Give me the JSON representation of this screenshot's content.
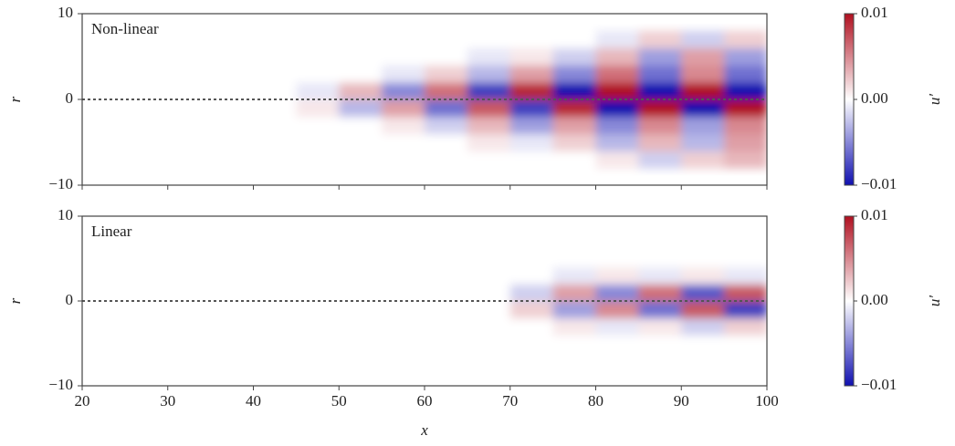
{
  "chart_data": [
    {
      "type": "heatmap",
      "annotation": "Non-linear",
      "ylabel": "r",
      "xlim": [
        20,
        100
      ],
      "xticks": [
        20,
        30,
        40,
        50,
        60,
        70,
        80,
        90,
        100
      ],
      "ylim": [
        -10,
        10
      ],
      "yticks": [
        {
          "value": -10,
          "label": "−10"
        },
        0,
        10
      ],
      "x": [
        22.5,
        27.5,
        32.5,
        37.5,
        42.5,
        47.5,
        52.5,
        57.5,
        62.5,
        67.5,
        72.5,
        77.5,
        82.5,
        87.5,
        92.5,
        97.5
      ],
      "y": [
        -7,
        -5,
        -3,
        -1,
        1,
        3,
        5,
        7
      ],
      "z": [
        [
          0,
          0,
          0,
          0,
          0,
          0,
          0,
          0,
          0,
          0,
          0,
          0,
          0.001,
          -0.002,
          0.002,
          0.003
        ],
        [
          0,
          0,
          0,
          0,
          0,
          0,
          0,
          0,
          0,
          0.001,
          -0.001,
          0.002,
          -0.003,
          0.003,
          -0.003,
          0.004
        ],
        [
          0,
          0,
          0,
          0,
          0,
          0,
          0,
          0.001,
          -0.002,
          0.003,
          -0.004,
          0.004,
          -0.005,
          0.005,
          -0.004,
          0.005
        ],
        [
          0,
          0,
          0,
          0,
          0,
          0.001,
          -0.003,
          0.004,
          -0.006,
          0.007,
          -0.008,
          0.009,
          -0.01,
          0.01,
          -0.01,
          0.01
        ],
        [
          0,
          0,
          0,
          0,
          0,
          -0.001,
          0.003,
          -0.005,
          0.006,
          -0.008,
          0.009,
          -0.01,
          0.01,
          -0.01,
          0.01,
          -0.01
        ],
        [
          0,
          0,
          0,
          0,
          0,
          0,
          0,
          -0.001,
          0.002,
          -0.003,
          0.004,
          -0.005,
          0.006,
          -0.006,
          0.005,
          -0.006
        ],
        [
          0,
          0,
          0,
          0,
          0,
          0,
          0,
          0,
          0,
          -0.001,
          0.001,
          -0.002,
          0.003,
          -0.004,
          0.004,
          -0.004
        ],
        [
          0,
          0,
          0,
          0,
          0,
          0,
          0,
          0,
          0,
          0,
          0,
          0,
          -0.001,
          0.002,
          -0.002,
          0.002
        ]
      ],
      "colormap": [
        "#1010b0",
        "#ffffff",
        "#b01020"
      ],
      "colorbar": {
        "label": "u′",
        "lim": [
          -0.01,
          0.01
        ],
        "ticks": [
          {
            "value": -0.01,
            "label": "−0.01"
          },
          {
            "value": 0,
            "label": "0.00"
          },
          0.01
        ]
      }
    },
    {
      "type": "heatmap",
      "annotation": "Linear",
      "ylabel": "r",
      "xlabel": "x",
      "xlim": [
        20,
        100
      ],
      "xticks": [
        20,
        30,
        40,
        50,
        60,
        70,
        80,
        90,
        100
      ],
      "ylim": [
        -10,
        10
      ],
      "yticks": [
        {
          "value": -10,
          "label": "−10"
        },
        0,
        10
      ],
      "x": [
        22.5,
        27.5,
        32.5,
        37.5,
        42.5,
        47.5,
        52.5,
        57.5,
        62.5,
        67.5,
        72.5,
        77.5,
        82.5,
        87.5,
        92.5,
        97.5
      ],
      "y": [
        -7,
        -5,
        -3,
        -1,
        1,
        3,
        5,
        7
      ],
      "z": [
        [
          0,
          0,
          0,
          0,
          0,
          0,
          0,
          0,
          0,
          0,
          0,
          0,
          0,
          0,
          0,
          0
        ],
        [
          0,
          0,
          0,
          0,
          0,
          0,
          0,
          0,
          0,
          0,
          0,
          0,
          0,
          0,
          0,
          0
        ],
        [
          0,
          0,
          0,
          0,
          0,
          0,
          0,
          0,
          0,
          0,
          0,
          0.001,
          -0.001,
          0.001,
          -0.002,
          0.002
        ],
        [
          0,
          0,
          0,
          0,
          0,
          0,
          0,
          0,
          0,
          0,
          0.002,
          -0.004,
          0.005,
          -0.006,
          0.007,
          -0.008
        ],
        [
          0,
          0,
          0,
          0,
          0,
          0,
          0,
          0,
          0,
          0,
          -0.002,
          0.004,
          -0.005,
          0.006,
          -0.007,
          0.007
        ],
        [
          0,
          0,
          0,
          0,
          0,
          0,
          0,
          0,
          0,
          0,
          0,
          -0.001,
          0.001,
          -0.001,
          0.001,
          -0.001
        ],
        [
          0,
          0,
          0,
          0,
          0,
          0,
          0,
          0,
          0,
          0,
          0,
          0,
          0,
          0,
          0,
          0
        ],
        [
          0,
          0,
          0,
          0,
          0,
          0,
          0,
          0,
          0,
          0,
          0,
          0,
          0,
          0,
          0,
          0
        ]
      ],
      "colormap": [
        "#1010b0",
        "#ffffff",
        "#b01020"
      ],
      "colorbar": {
        "label": "u′",
        "lim": [
          -0.01,
          0.01
        ],
        "ticks": [
          {
            "value": -0.01,
            "label": "−0.01"
          },
          {
            "value": 0,
            "label": "0.00"
          },
          0.01
        ]
      }
    }
  ]
}
